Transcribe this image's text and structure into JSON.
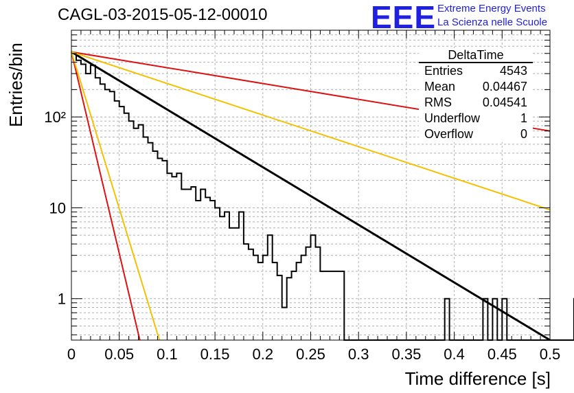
{
  "title": "CAGL-03-2015-05-12-00010",
  "logo": {
    "text": "EEE",
    "line1": "Extreme Energy Events",
    "line2": "La Scienza nelle Scuole",
    "color": "#2020e0"
  },
  "stats": {
    "name": "DeltaTime",
    "rows": [
      {
        "label": "Entries",
        "value": "4543"
      },
      {
        "label": "Mean",
        "value": "0.04467"
      },
      {
        "label": "RMS",
        "value": "0.04541"
      },
      {
        "label": "Underflow",
        "value": "1"
      },
      {
        "label": "Overflow",
        "value": "0"
      }
    ]
  },
  "chart_data": {
    "type": "line",
    "xlabel": "Time difference [s]",
    "ylabel": "Entries/bin",
    "xlim": [
      0,
      0.5
    ],
    "ylim": [
      0.35,
      900
    ],
    "yscale": "log",
    "grid": true,
    "x_ticks": [
      "0",
      "0.05",
      "0.1",
      "0.15",
      "0.2",
      "0.25",
      "0.3",
      "0.35",
      "0.4",
      "0.45",
      "0.5"
    ],
    "y_ticks": [
      {
        "value": 1,
        "label": "1"
      },
      {
        "value": 10,
        "label": "10"
      },
      {
        "value": 100,
        "label": "10²"
      }
    ],
    "histogram": {
      "bin_width": 0.005,
      "bin_start": 0.0,
      "counts": [
        500,
        420,
        380,
        300,
        370,
        270,
        230,
        200,
        190,
        150,
        130,
        110,
        90,
        75,
        82,
        60,
        52,
        42,
        35,
        33,
        24,
        22,
        24,
        16,
        16,
        17,
        12,
        16,
        13,
        12,
        10,
        8,
        9,
        6,
        6,
        9,
        4,
        3.5,
        3,
        2.5,
        3,
        5,
        2.5,
        1.8,
        0.8,
        1.7,
        2.0,
        2.5,
        3,
        3.7,
        5,
        3.7,
        2,
        2,
        2,
        2,
        2,
        0,
        0,
        0,
        0,
        0,
        0,
        0,
        0,
        0,
        0,
        0,
        0,
        0,
        0,
        0,
        0,
        0,
        0,
        0,
        0,
        0,
        1,
        0,
        0,
        0,
        0,
        0,
        0,
        0,
        1,
        0,
        1,
        0,
        1,
        0,
        0,
        0,
        0,
        0,
        0,
        0,
        0,
        0,
        0,
        0,
        0,
        0,
        0,
        1,
        0,
        0,
        0,
        0
      ],
      "color": "#000000"
    },
    "series": [
      {
        "x": [
          0,
          0.5
        ],
        "y": [
          520,
          0.35
        ],
        "color": "#000000",
        "style": "fit"
      },
      {
        "x": [
          0,
          0.5
        ],
        "y": [
          520,
          70
        ],
        "color": "#dd1111"
      },
      {
        "x": [
          0,
          0.0715
        ],
        "y": [
          520,
          0.35
        ],
        "color": "#dd1111"
      },
      {
        "x": [
          0,
          0.5
        ],
        "y": [
          520,
          9.5
        ],
        "color": "#f5c000"
      },
      {
        "x": [
          0,
          0.092
        ],
        "y": [
          520,
          0.35
        ],
        "color": "#f5c000"
      }
    ]
  }
}
